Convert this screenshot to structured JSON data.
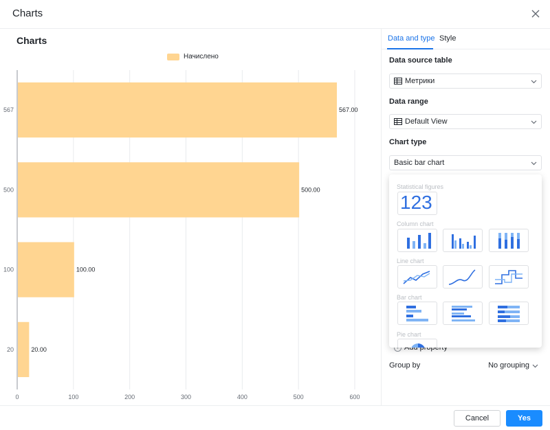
{
  "modal": {
    "title": "Charts"
  },
  "chart_panel": {
    "title": "Charts"
  },
  "config": {
    "tabs": [
      {
        "label": "Data and type"
      },
      {
        "label": "Style"
      }
    ],
    "data_source": {
      "label": "Data source table",
      "value": "Метрики"
    },
    "data_range": {
      "label": "Data range",
      "value": "Default View"
    },
    "chart_type": {
      "label": "Chart type",
      "value": "Basic bar chart"
    },
    "add_property": {
      "label": "Add property"
    },
    "group_by": {
      "label": "Group by",
      "value": "No grouping"
    }
  },
  "chart_type_menu": {
    "groups": [
      {
        "label": "Statistical figures",
        "items": [
          "123"
        ]
      },
      {
        "label": "Column chart",
        "items": [
          "basic-column-icon",
          "grouped-column-icon",
          "stacked-column-icon"
        ]
      },
      {
        "label": "Line chart",
        "items": [
          "basic-line-icon",
          "smooth-line-icon",
          "step-line-icon"
        ]
      },
      {
        "label": "Bar chart",
        "items": [
          "basic-bar-icon",
          "grouped-bar-icon",
          "stacked-bar-icon"
        ]
      },
      {
        "label": "Pie chart",
        "items": [
          "pie-icon"
        ]
      }
    ]
  },
  "footer": {
    "cancel_label": "Cancel",
    "yes_label": "Yes"
  },
  "colors": {
    "bar": "#ffd591",
    "accent": "#1a73e8",
    "primary_button": "#1a8cff",
    "grid": "#e8eaed",
    "axis_text": "#646a73"
  },
  "chart_data": {
    "type": "bar",
    "orientation": "horizontal",
    "title": "Charts",
    "legend": [
      "Начислено"
    ],
    "legend_position": "top",
    "categories": [
      "567",
      "500",
      "100",
      "20"
    ],
    "series": [
      {
        "name": "Начислено",
        "values": [
          567,
          500,
          100,
          20
        ]
      }
    ],
    "value_labels": [
      "567.00",
      "500.00",
      "100.00",
      "20.00"
    ],
    "x_ticks": [
      0,
      100,
      200,
      300,
      400,
      500,
      600
    ],
    "xlim": [
      0,
      600
    ],
    "grid": true
  }
}
